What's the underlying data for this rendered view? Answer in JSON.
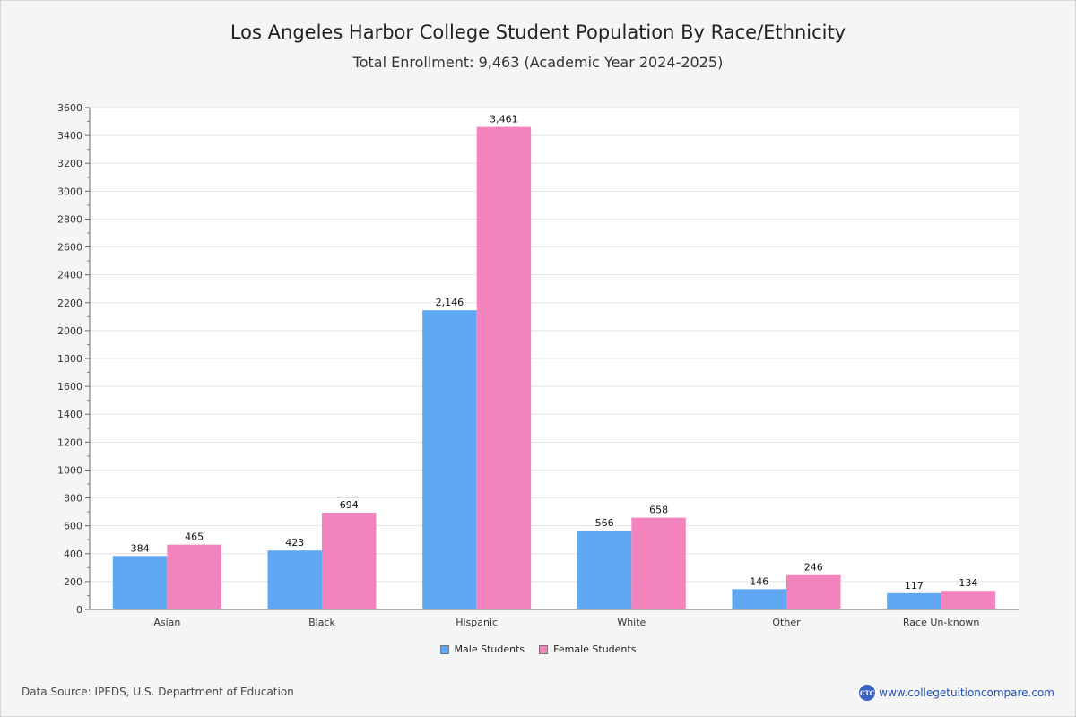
{
  "colors": {
    "male": "#61a8f2",
    "female": "#f383bc",
    "background": "#f5f5f5",
    "plot_background": "#ffffff"
  },
  "chart_data": {
    "type": "bar",
    "title": "Los Angeles Harbor College Student Population By Race/Ethnicity",
    "subtitle": "Total Enrollment: 9,463 (Academic Year 2024-2025)",
    "categories": [
      "Asian",
      "Black",
      "Hispanic",
      "White",
      "Other",
      "Race Un-known"
    ],
    "series": [
      {
        "name": "Male Students",
        "values": [
          384,
          423,
          2146,
          566,
          146,
          117
        ],
        "labels": [
          "384",
          "423",
          "2,146",
          "566",
          "146",
          "117"
        ]
      },
      {
        "name": "Female Students",
        "values": [
          465,
          694,
          3461,
          658,
          246,
          134
        ],
        "labels": [
          "465",
          "694",
          "3,461",
          "658",
          "246",
          "134"
        ]
      }
    ],
    "ylim": [
      0,
      3600
    ],
    "yticks": [
      "0",
      "200",
      "400",
      "600",
      "800",
      "1000",
      "1200",
      "1400",
      "1600",
      "1800",
      "2000",
      "2200",
      "2400",
      "2600",
      "2800",
      "3000",
      "3200",
      "3400",
      "3600"
    ],
    "grid": true,
    "legend_position": "bottom-center"
  },
  "footer": {
    "source": "Data Source: IPEDS, U.S. Department of Education",
    "logo_text": "CTC",
    "website": "www.collegetuitioncompare.com"
  }
}
